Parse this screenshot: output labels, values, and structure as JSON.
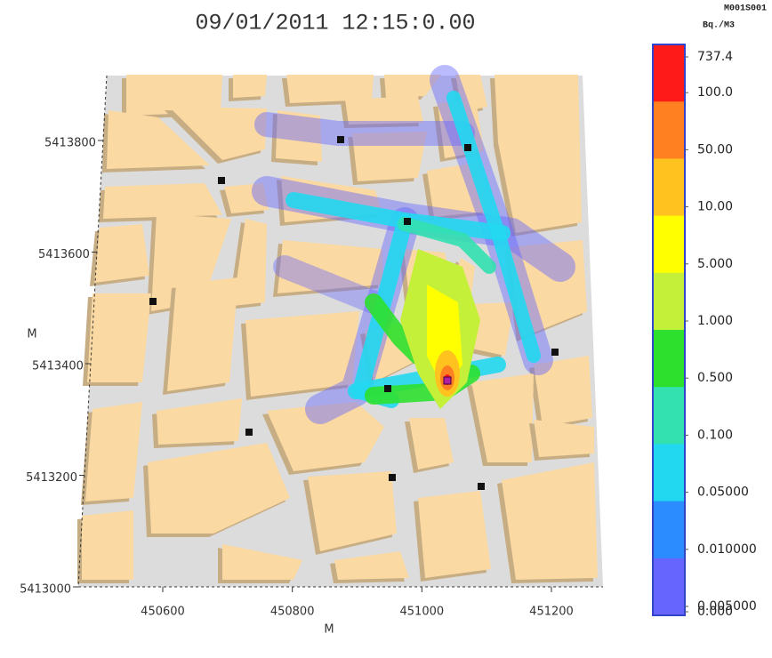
{
  "title": "09/01/2011 12:15:0.00",
  "x_axis": {
    "label": "M",
    "ticks": [
      450600,
      450800,
      451000,
      451200
    ]
  },
  "y_axis": {
    "label": "M",
    "ticks": [
      5413000,
      5413200,
      5413400,
      5413600,
      5413800
    ]
  },
  "colorbar": {
    "variable": "M001S001",
    "unit": "Bq./M3",
    "levels": [
      {
        "value": 737.4,
        "label": "737.4"
      },
      {
        "value": 100,
        "label": "100.0"
      },
      {
        "value": 50,
        "label": "50.00"
      },
      {
        "value": 10,
        "label": "10.00"
      },
      {
        "value": 5,
        "label": "5.000"
      },
      {
        "value": 1,
        "label": "1.000"
      },
      {
        "value": 0.5,
        "label": "0.500"
      },
      {
        "value": 0.1,
        "label": "0.100"
      },
      {
        "value": 0.05,
        "label": "0.05000"
      },
      {
        "value": 0.01,
        "label": "0.010000"
      },
      {
        "value": 0.005,
        "label": "0.005000"
      },
      {
        "value": 0,
        "label": "0.000"
      }
    ],
    "colors": [
      "#ff1a1a",
      "#ff8020",
      "#ffc21e",
      "#ffff00",
      "#c4f03a",
      "#2ee02e",
      "#33e0b0",
      "#22d8f0",
      "#2a8cff",
      "#6666ff"
    ]
  }
}
